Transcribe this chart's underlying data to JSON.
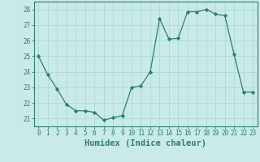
{
  "x": [
    0,
    1,
    2,
    3,
    4,
    5,
    6,
    7,
    8,
    9,
    10,
    11,
    12,
    13,
    14,
    15,
    16,
    17,
    18,
    19,
    20,
    21,
    22,
    23
  ],
  "y": [
    25.0,
    23.8,
    22.9,
    21.9,
    21.5,
    21.5,
    21.4,
    20.9,
    21.05,
    21.2,
    23.0,
    23.1,
    24.0,
    27.4,
    26.1,
    26.15,
    27.85,
    27.85,
    28.0,
    27.7,
    27.6,
    25.1,
    22.7,
    22.7
  ],
  "line_color": "#2e7d6e",
  "marker": "D",
  "marker_size": 2.2,
  "bg_color": "#c8eaea",
  "grid_color": "#b0d8d8",
  "xlabel": "Humidex (Indice chaleur)",
  "xlim": [
    -0.5,
    23.5
  ],
  "ylim": [
    20.5,
    28.5
  ],
  "yticks": [
    21,
    22,
    23,
    24,
    25,
    26,
    27,
    28
  ],
  "xticks": [
    0,
    1,
    2,
    3,
    4,
    5,
    6,
    7,
    8,
    9,
    10,
    11,
    12,
    13,
    14,
    15,
    16,
    17,
    18,
    19,
    20,
    21,
    22,
    23
  ],
  "tick_color": "#2e7d6e",
  "label_color": "#2e7d6e",
  "axis_color": "#2e7d6e",
  "tick_fontsize": 5.5,
  "xlabel_fontsize": 7.5
}
